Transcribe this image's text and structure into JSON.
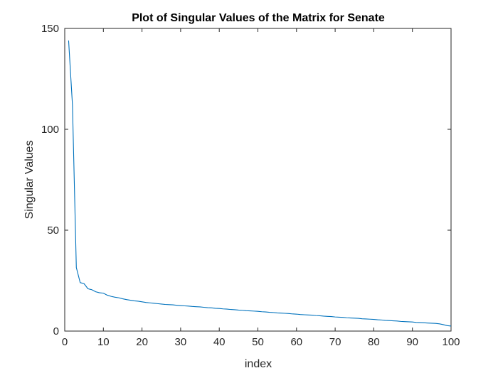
{
  "chart_data": {
    "type": "line",
    "title": "Plot of Singular Values of the Matrix for Senate",
    "xlabel": "index",
    "ylabel": "Singular Values",
    "xlim": [
      0,
      100
    ],
    "ylim": [
      0,
      150
    ],
    "xticks": [
      "0",
      "10",
      "20",
      "30",
      "40",
      "50",
      "60",
      "70",
      "80",
      "90",
      "100"
    ],
    "yticks": [
      "0",
      "50",
      "100",
      "150"
    ],
    "grid": false,
    "line_color": "#0072BD",
    "series": [
      {
        "x": [
          1,
          2,
          3,
          4,
          5,
          6,
          7,
          8,
          9,
          10,
          11,
          12,
          13,
          14,
          15,
          16,
          17,
          18,
          19,
          20,
          21,
          22,
          23,
          24,
          25,
          26,
          27,
          28,
          29,
          30,
          31,
          32,
          33,
          34,
          35,
          36,
          37,
          38,
          39,
          40,
          41,
          42,
          43,
          44,
          45,
          46,
          47,
          48,
          49,
          50,
          51,
          52,
          53,
          54,
          55,
          56,
          57,
          58,
          59,
          60,
          61,
          62,
          63,
          64,
          65,
          66,
          67,
          68,
          69,
          70,
          71,
          72,
          73,
          74,
          75,
          76,
          77,
          78,
          79,
          80,
          81,
          82,
          83,
          84,
          85,
          86,
          87,
          88,
          89,
          90,
          91,
          92,
          93,
          94,
          95,
          96,
          97,
          98,
          99,
          100
        ],
        "values": [
          144,
          112,
          31.5,
          24,
          23.5,
          21,
          20.5,
          19.5,
          19,
          18.8,
          17.8,
          17.2,
          16.8,
          16.5,
          16,
          15.6,
          15.3,
          15,
          14.8,
          14.5,
          14.2,
          14,
          13.8,
          13.6,
          13.4,
          13.2,
          13.1,
          13,
          12.8,
          12.6,
          12.5,
          12.4,
          12.2,
          12.1,
          12,
          11.8,
          11.6,
          11.5,
          11.3,
          11.2,
          11,
          10.9,
          10.7,
          10.6,
          10.4,
          10.3,
          10.1,
          10,
          9.9,
          9.8,
          9.6,
          9.5,
          9.3,
          9.2,
          9,
          8.9,
          8.8,
          8.7,
          8.5,
          8.4,
          8.2,
          8.1,
          8,
          7.9,
          7.7,
          7.6,
          7.4,
          7.3,
          7.2,
          7,
          6.9,
          6.8,
          6.6,
          6.5,
          6.4,
          6.3,
          6.1,
          6,
          5.9,
          5.8,
          5.6,
          5.5,
          5.3,
          5.2,
          5.1,
          5,
          4.8,
          4.7,
          4.6,
          4.5,
          4.3,
          4.2,
          4.1,
          4,
          3.9,
          3.8,
          3.6,
          3.2,
          2.7,
          2.5
        ]
      }
    ]
  }
}
